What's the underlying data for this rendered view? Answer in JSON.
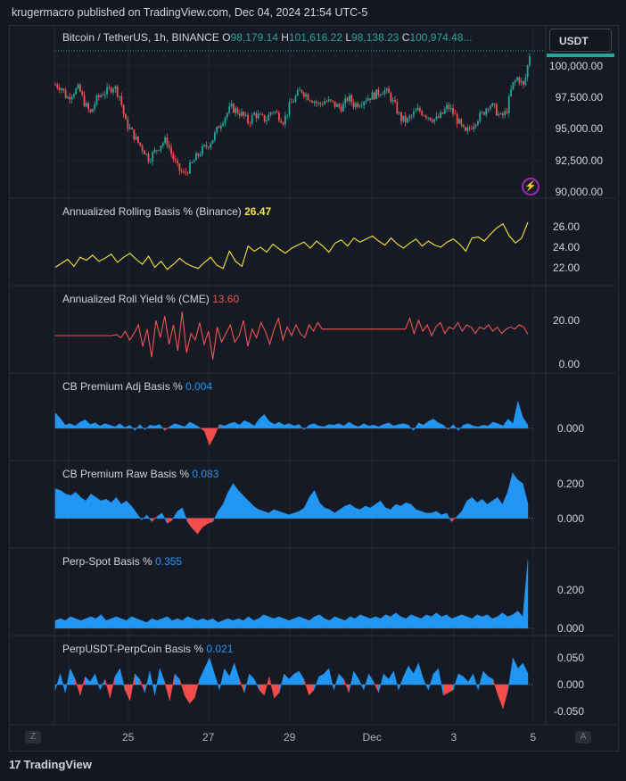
{
  "header": {
    "published": "krugermacro published on TradingView.com, Dec 04, 2024 21:54 UTC-5"
  },
  "main_pane": {
    "symbol": "Bitcoin / TetherUS, 1h, BINANCE",
    "o_label": "O",
    "o_value": "98,179.14",
    "h_label": "H",
    "h_value": "101,616.22",
    "l_label": "L",
    "l_value": "98,138.23",
    "c_label": "C",
    "c_value": "100,974.48",
    "ellipsis": "...",
    "currency_button": "USDT",
    "yticks": [
      "100,000.00",
      "97,500.00",
      "95,000.00",
      "92,500.00",
      "90,000.00"
    ]
  },
  "x_axis": {
    "labels": [
      "25",
      "27",
      "29",
      "Dec",
      "3",
      "5"
    ],
    "left_button": "Z",
    "right_button": "A"
  },
  "footer": {
    "brand": "TradingView",
    "logo_glyph": "17"
  },
  "colors": {
    "up": "#26a69a",
    "down": "#ef5350",
    "yellow": "#f5e63a",
    "red_line": "#ef5350",
    "blue": "#2196f3",
    "neg_fill": "#f44b4b"
  },
  "chart_data": [
    {
      "type": "candlestick",
      "title": "Bitcoin / TetherUS, 1h, BINANCE",
      "ylim": [
        89800,
        101800
      ],
      "yticks": [
        100000,
        97500,
        95000,
        92500,
        90000
      ],
      "x_labels": [
        "25",
        "27",
        "29",
        "Dec",
        "3",
        "5"
      ],
      "close_path": [
        98500,
        98300,
        97400,
        97900,
        98200,
        97000,
        96200,
        97300,
        97800,
        98000,
        98400,
        97600,
        95500,
        94800,
        94000,
        93400,
        92600,
        93200,
        93800,
        94100,
        92800,
        91800,
        91400,
        92000,
        92700,
        93300,
        93700,
        94300,
        95300,
        96000,
        96700,
        96400,
        96100,
        95500,
        96200,
        95900,
        95700,
        96500,
        96100,
        95600,
        96800,
        97500,
        98100,
        97600,
        97300,
        96900,
        97200,
        97100,
        96800,
        96700,
        97500,
        96900,
        97100,
        97400,
        97600,
        97800,
        98100,
        97700,
        96800,
        95800,
        95600,
        96100,
        96500,
        96200,
        95900,
        95700,
        96100,
        96800,
        96200,
        95400,
        94600,
        95200,
        95800,
        96200,
        97000,
        96600,
        95900,
        96300,
        98400,
        99100,
        98300,
        100900
      ],
      "last": 100974.48
    },
    {
      "type": "line",
      "name": "Annualized Rolling Basis % (Binance)",
      "last_label": "26.47",
      "color": "#f5e63a",
      "ylim": [
        20.9,
        26.9
      ],
      "yticks": [
        "26.00",
        "24.00",
        "22.00"
      ],
      "values": [
        22.0,
        22.4,
        22.8,
        22.1,
        23.0,
        22.7,
        23.2,
        22.6,
        22.9,
        23.3,
        22.5,
        23.0,
        23.4,
        22.8,
        22.3,
        23.1,
        22.0,
        22.6,
        21.8,
        22.3,
        22.9,
        22.4,
        22.1,
        21.9,
        22.5,
        23.0,
        22.2,
        21.9,
        23.6,
        22.6,
        22.1,
        24.1,
        23.6,
        24.0,
        23.5,
        24.3,
        23.8,
        23.4,
        23.9,
        24.2,
        24.5,
        23.9,
        24.6,
        24.1,
        23.5,
        24.4,
        24.7,
        24.1,
        24.9,
        24.5,
        24.8,
        25.1,
        24.6,
        24.2,
        24.9,
        24.3,
        23.9,
        24.4,
        24.8,
        24.1,
        24.6,
        24.2,
        24.0,
        24.5,
        24.8,
        24.3,
        23.6,
        24.9,
        25.0,
        24.6,
        25.3,
        25.9,
        26.3,
        25.1,
        24.4,
        24.9,
        26.47
      ]
    },
    {
      "type": "line",
      "name": "Annualized Roll Yield % (CME)",
      "last_label": "13.60",
      "color": "#ef5350",
      "ylim": [
        -1,
        27
      ],
      "yticks": [
        "20.00",
        "0.00"
      ],
      "values": [
        13,
        13,
        13,
        13,
        13,
        13,
        13,
        13,
        13,
        13,
        13,
        13,
        13,
        13,
        13.5,
        12,
        15,
        11,
        14,
        18,
        8,
        16,
        3,
        20,
        12,
        22,
        9,
        18,
        6,
        24,
        5,
        14,
        11,
        19,
        9,
        15,
        2,
        17,
        10,
        14,
        18,
        10,
        13,
        20,
        8,
        16,
        12,
        19,
        15,
        9,
        16,
        21,
        11,
        17,
        13,
        18,
        14,
        12,
        18,
        15,
        19,
        16,
        16,
        16,
        16,
        16,
        16,
        16,
        16,
        16,
        16,
        16,
        16,
        16,
        16,
        16,
        16,
        16,
        16,
        16,
        16,
        21,
        14,
        20,
        15,
        18,
        13,
        17,
        19,
        14,
        17,
        16,
        19,
        15,
        18,
        17,
        14,
        17,
        16,
        18,
        15,
        17,
        14,
        16,
        17,
        16,
        18,
        17,
        13.6
      ]
    },
    {
      "type": "area",
      "name": "CB Premium Adj Basis %",
      "last_label": "0.004",
      "ylim": [
        -0.035,
        0.06
      ],
      "yticks": [
        "0.000"
      ],
      "values": [
        0.02,
        0.013,
        0.004,
        0.006,
        0.003,
        0.008,
        0.011,
        0.005,
        0.007,
        0.003,
        0.006,
        0.004,
        0.002,
        0.006,
        0.001,
        0.004,
        -0.003,
        0.005,
        -0.002,
        0.004,
        0.003,
        0.005,
        -0.003,
        0.002,
        0.006,
        0.004,
        0.002,
        0.008,
        0.005,
        0.001,
        -0.004,
        -0.022,
        -0.01,
        0.005,
        0.003,
        0.006,
        0.008,
        0.004,
        0.01,
        0.007,
        0.003,
        0.012,
        0.018,
        0.009,
        0.005,
        0.008,
        0.004,
        0.006,
        0.003,
        0.005,
        -0.002,
        0.004,
        0.006,
        0.003,
        0.002,
        0.005,
        0.004,
        0.006,
        0.003,
        0.008,
        0.004,
        0.002,
        0.006,
        0.003,
        0.004,
        0.002,
        0.005,
        0.007,
        0.003,
        0.005,
        0.006,
        0.004,
        -0.003,
        0.007,
        0.004,
        0.009,
        0.012,
        0.007,
        0.004,
        -0.002,
        0.005,
        -0.003,
        0.004,
        0.006,
        0.003,
        0.002,
        0.004,
        0.003,
        0.008,
        0.006,
        0.003,
        0.012,
        0.006,
        0.035,
        0.014,
        0.004
      ]
    },
    {
      "type": "area",
      "name": "CB Premium Raw Basis %",
      "last_label": "0.083",
      "ylim": [
        -0.14,
        0.28
      ],
      "yticks": [
        "0.200",
        "0.000"
      ],
      "values": [
        0.17,
        0.16,
        0.14,
        0.13,
        0.15,
        0.12,
        0.1,
        0.14,
        0.12,
        0.1,
        0.11,
        0.09,
        0.12,
        0.08,
        0.1,
        0.07,
        0.03,
        -0.01,
        0.02,
        -0.02,
        0.01,
        0.03,
        -0.03,
        -0.01,
        0.04,
        0.06,
        -0.02,
        -0.06,
        -0.09,
        -0.05,
        -0.03,
        -0.02,
        0.04,
        0.08,
        0.15,
        0.2,
        0.16,
        0.13,
        0.1,
        0.07,
        0.05,
        0.04,
        0.03,
        0.05,
        0.04,
        0.03,
        0.02,
        0.03,
        0.04,
        0.06,
        0.12,
        0.16,
        0.09,
        0.06,
        0.05,
        0.03,
        0.05,
        0.07,
        0.08,
        0.06,
        0.05,
        0.07,
        0.06,
        0.08,
        0.1,
        0.06,
        0.05,
        0.08,
        0.07,
        0.09,
        0.08,
        0.05,
        0.04,
        0.03,
        0.03,
        0.04,
        0.02,
        0.03,
        -0.02,
        0.01,
        0.04,
        0.1,
        0.12,
        0.09,
        0.11,
        0.08,
        0.1,
        0.12,
        0.08,
        0.15,
        0.26,
        0.22,
        0.2,
        0.083
      ]
    },
    {
      "type": "area",
      "name": "Perp-Spot Basis %",
      "last_label": "0.355",
      "ylim": [
        -0.01,
        0.37
      ],
      "yticks": [
        "0.200",
        "0.000"
      ],
      "values": [
        0.04,
        0.05,
        0.04,
        0.06,
        0.05,
        0.04,
        0.05,
        0.06,
        0.05,
        0.07,
        0.04,
        0.05,
        0.06,
        0.05,
        0.04,
        0.06,
        0.05,
        0.04,
        0.03,
        0.05,
        0.04,
        0.05,
        0.06,
        0.04,
        0.05,
        0.04,
        0.06,
        0.05,
        0.04,
        0.05,
        0.04,
        0.05,
        0.03,
        0.04,
        0.05,
        0.04,
        0.05,
        0.04,
        0.06,
        0.04,
        0.05,
        0.07,
        0.06,
        0.05,
        0.06,
        0.05,
        0.04,
        0.05,
        0.06,
        0.05,
        0.04,
        0.06,
        0.07,
        0.05,
        0.04,
        0.06,
        0.05,
        0.04,
        0.06,
        0.05,
        0.07,
        0.06,
        0.05,
        0.06,
        0.05,
        0.07,
        0.06,
        0.08,
        0.06,
        0.05,
        0.07,
        0.06,
        0.05,
        0.07,
        0.06,
        0.08,
        0.06,
        0.07,
        0.05,
        0.06,
        0.07,
        0.06,
        0.05,
        0.07,
        0.06,
        0.07,
        0.05,
        0.06,
        0.08,
        0.06,
        0.07,
        0.09,
        0.06,
        0.355
      ]
    },
    {
      "type": "area",
      "name": "PerpUSDT-PerpCoin Basis %",
      "last_label": "0.021",
      "ylim": [
        -0.065,
        0.075
      ],
      "yticks": [
        "0.050",
        "0.000",
        "-0.050"
      ],
      "values": [
        -0.01,
        0.02,
        -0.015,
        0.03,
        0.01,
        -0.02,
        0.015,
        0.005,
        0.02,
        -0.01,
        0.01,
        -0.025,
        0.015,
        0.03,
        -0.01,
        -0.03,
        0.02,
        0.01,
        -0.015,
        0.025,
        -0.02,
        0.03,
        0.005,
        -0.03,
        0.02,
        0.01,
        -0.02,
        -0.035,
        -0.025,
        0.01,
        0.03,
        0.05,
        0.02,
        -0.01,
        0.03,
        0.015,
        0.04,
        0.01,
        -0.015,
        0.02,
        0.01,
        -0.01,
        -0.02,
        0.015,
        -0.025,
        -0.015,
        0.02,
        0.01,
        0.02,
        0.025,
        0.01,
        -0.02,
        -0.01,
        0.015,
        0.02,
        0.03,
        -0.01,
        0.02,
        0.01,
        -0.015,
        0.025,
        0.01,
        -0.01,
        0.02,
        0.005,
        -0.015,
        0.02,
        0.01,
        0.025,
        -0.01,
        0.015,
        0.035,
        0.02,
        0.04,
        0.01,
        -0.01,
        0.02,
        0.03,
        -0.02,
        -0.015,
        -0.01,
        0.02,
        0.015,
        0.005,
        0.02,
        -0.01,
        0.025,
        0.015,
        0.01,
        -0.02,
        -0.045,
        -0.01,
        0.05,
        0.03,
        0.04,
        0.021
      ]
    }
  ]
}
